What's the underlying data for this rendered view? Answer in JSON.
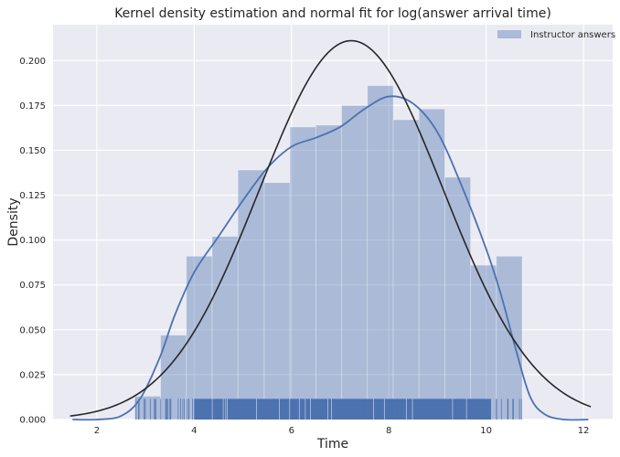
{
  "chart_data": {
    "type": "bar",
    "title": "Kernel density estimation and normal fit for log(answer arrival time)",
    "xlabel": "Time",
    "ylabel": "Density",
    "xlim": [
      1.1,
      12.6
    ],
    "ylim": [
      0,
      0.22
    ],
    "xticks": [
      2,
      4,
      6,
      8,
      10,
      12
    ],
    "yticks": [
      0.0,
      0.025,
      0.05,
      0.075,
      0.1,
      0.125,
      0.15,
      0.175,
      0.2
    ],
    "ytick_labels": [
      "0.000",
      "0.025",
      "0.050",
      "0.075",
      "0.100",
      "0.125",
      "0.150",
      "0.175",
      "0.200"
    ],
    "grid": true,
    "legend": {
      "placement": "top-right",
      "entries": [
        "Instructor answers"
      ]
    },
    "colors": {
      "hist": "#4c72b0",
      "kde": "#4c72b0",
      "normal": "#262626",
      "background": "#eaeaf2",
      "grid": "#ffffff"
    },
    "histogram": {
      "name": "Instructor answers",
      "bin_edges": [
        2.78,
        3.31,
        3.84,
        4.37,
        4.9,
        5.44,
        5.97,
        6.5,
        7.03,
        7.56,
        8.09,
        8.62,
        9.15,
        9.68,
        10.21,
        10.74
      ],
      "densities": [
        0.013,
        0.047,
        0.091,
        0.102,
        0.139,
        0.132,
        0.163,
        0.164,
        0.175,
        0.186,
        0.167,
        0.173,
        0.135,
        0.086,
        0.091
      ]
    },
    "kde": {
      "x": [
        1.5,
        2.0,
        2.5,
        2.9,
        3.3,
        3.6,
        4.0,
        4.5,
        5.0,
        5.5,
        6.0,
        6.5,
        7.0,
        7.5,
        8.0,
        8.5,
        9.0,
        9.5,
        10.0,
        10.3,
        10.6,
        10.9,
        11.2,
        11.6,
        12.1
      ],
      "y": [
        0.0,
        0.0,
        0.002,
        0.012,
        0.035,
        0.058,
        0.082,
        0.102,
        0.122,
        0.14,
        0.152,
        0.157,
        0.163,
        0.173,
        0.18,
        0.176,
        0.16,
        0.13,
        0.095,
        0.07,
        0.04,
        0.013,
        0.003,
        0.0,
        0.0
      ]
    },
    "normal_fit": {
      "mean": 7.23,
      "std": 1.89,
      "x_range": [
        1.45,
        12.15
      ]
    },
    "rug": {
      "x_range": [
        2.8,
        10.8
      ],
      "height": 0.0115
    }
  }
}
